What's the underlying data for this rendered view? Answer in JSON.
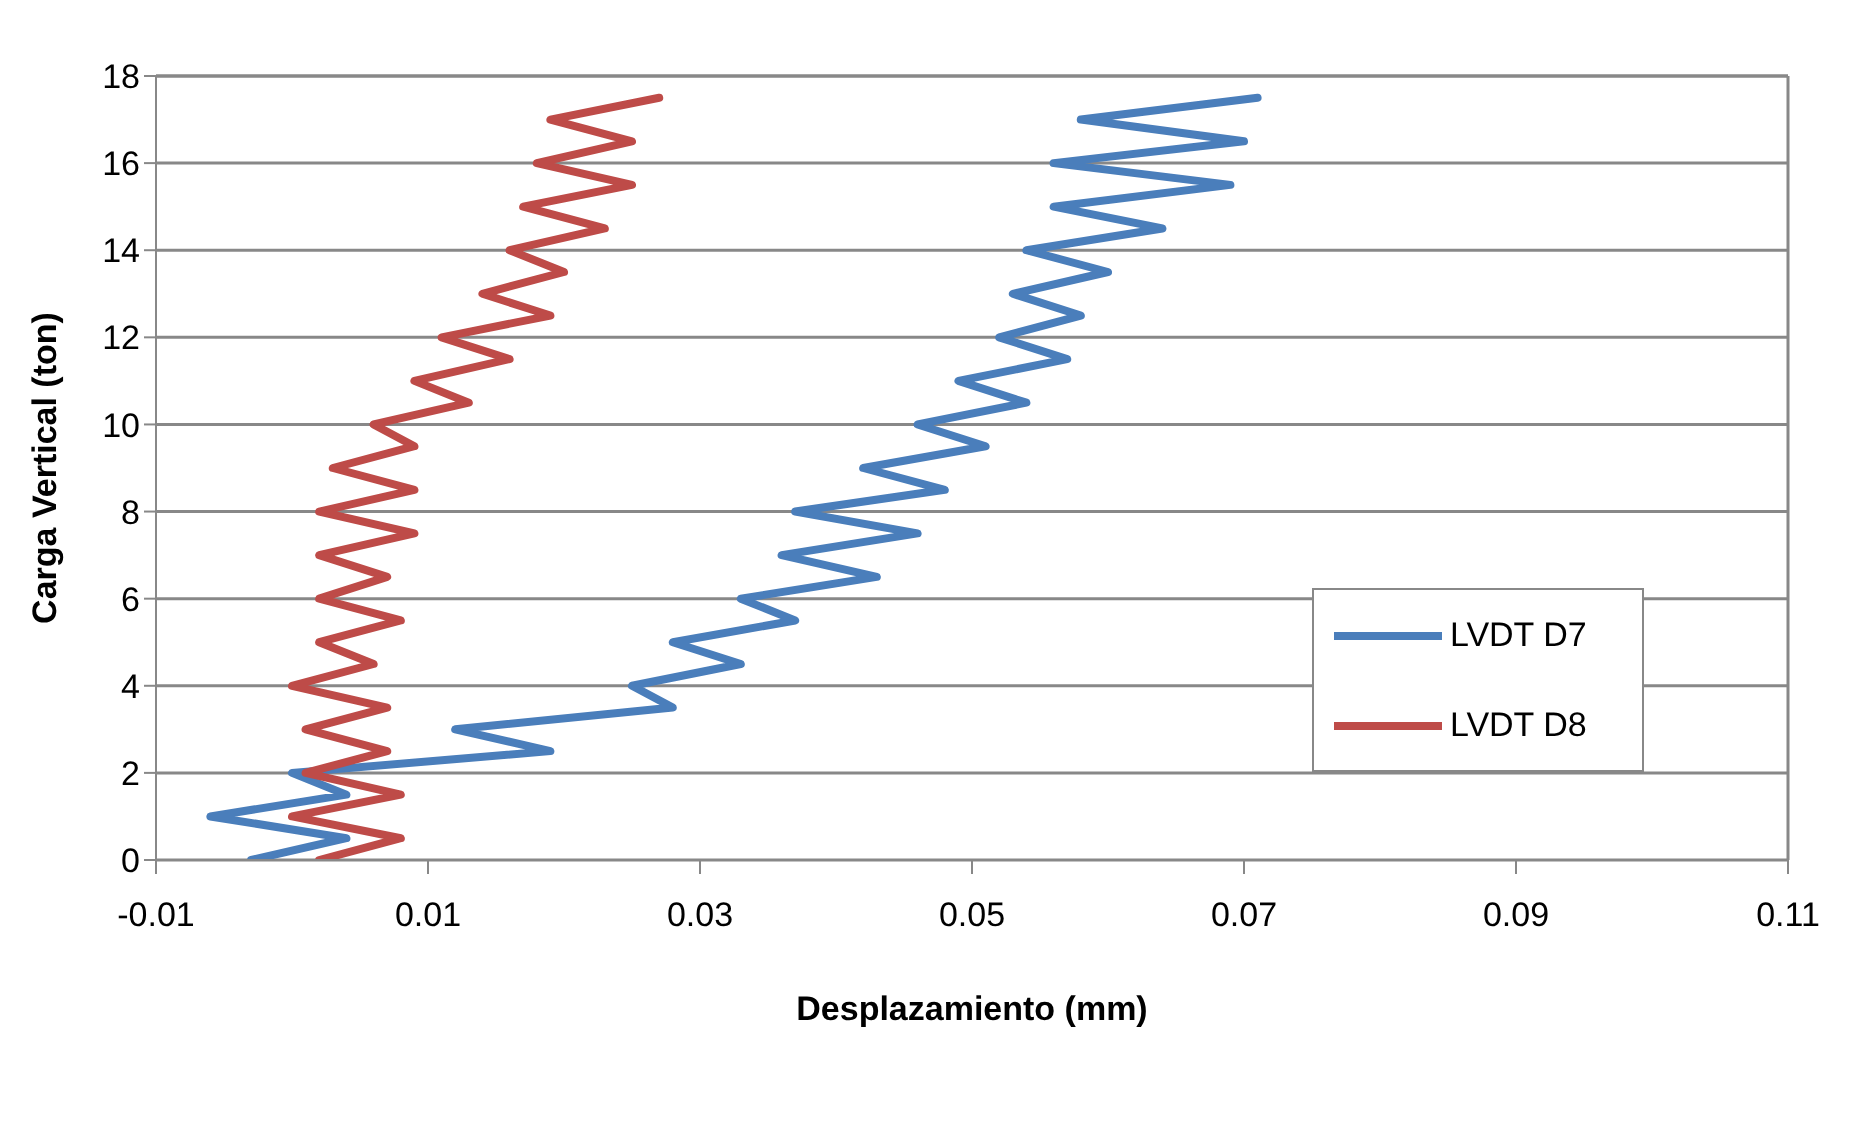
{
  "chart_data": {
    "type": "line",
    "xlabel": "Desplazamiento (mm)",
    "ylabel": "Carga Vertical (ton)",
    "xlim": [
      -0.01,
      0.11
    ],
    "xticks": [
      -0.01,
      0.01,
      0.03,
      0.05,
      0.07,
      0.09,
      0.11
    ],
    "ylim": [
      0,
      18
    ],
    "yticks": [
      0,
      2,
      4,
      6,
      8,
      10,
      12,
      14,
      16,
      18
    ],
    "grid": "y",
    "legend": "right",
    "series": [
      {
        "name": "LVDT D7",
        "color": "#4a7ebb",
        "x": [
          -0.003,
          0.004,
          -0.006,
          0.004,
          0.0,
          0.019,
          0.012,
          0.028,
          0.025,
          0.033,
          0.028,
          0.037,
          0.033,
          0.043,
          0.036,
          0.046,
          0.037,
          0.048,
          0.042,
          0.051,
          0.046,
          0.054,
          0.049,
          0.057,
          0.052,
          0.058,
          0.053,
          0.06,
          0.054,
          0.064,
          0.056,
          0.069,
          0.056,
          0.07,
          0.058,
          0.071
        ],
        "values": [
          0,
          0.5,
          1,
          1.5,
          2,
          2.5,
          3,
          3.5,
          4,
          4.5,
          5,
          5.5,
          6,
          6.5,
          7,
          7.5,
          8,
          8.5,
          9,
          9.5,
          10,
          10.5,
          11,
          11.5,
          12,
          12.5,
          13,
          13.5,
          14,
          14.5,
          15,
          15.5,
          16,
          16.5,
          17,
          17.5
        ]
      },
      {
        "name": "LVDT D8",
        "color": "#be4b48",
        "x": [
          0.002,
          0.008,
          0.0,
          0.008,
          0.001,
          0.007,
          0.001,
          0.007,
          0.0,
          0.006,
          0.002,
          0.008,
          0.002,
          0.007,
          0.002,
          0.009,
          0.002,
          0.009,
          0.003,
          0.009,
          0.006,
          0.013,
          0.009,
          0.016,
          0.011,
          0.019,
          0.014,
          0.02,
          0.016,
          0.023,
          0.017,
          0.025,
          0.018,
          0.025,
          0.019,
          0.027
        ],
        "values": [
          0,
          0.5,
          1,
          1.5,
          2,
          2.5,
          3,
          3.5,
          4,
          4.5,
          5,
          5.5,
          6,
          6.5,
          7,
          7.5,
          8,
          8.5,
          9,
          9.5,
          10,
          10.5,
          11,
          11.5,
          12,
          12.5,
          13,
          13.5,
          14,
          14.5,
          15,
          15.5,
          16,
          16.5,
          17,
          17.5
        ]
      }
    ]
  }
}
